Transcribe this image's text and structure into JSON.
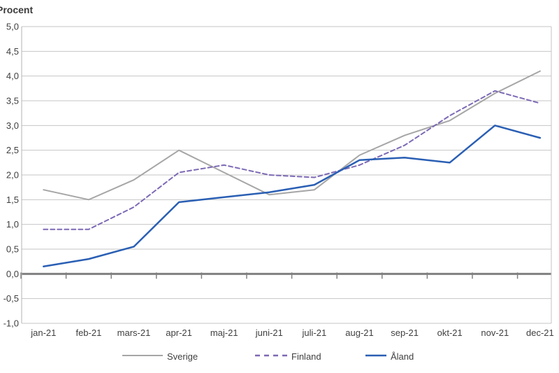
{
  "chart_data": {
    "type": "line",
    "title": "Procent",
    "categories": [
      "jan-21",
      "feb-21",
      "mars-21",
      "apr-21",
      "maj-21",
      "juni-21",
      "juli-21",
      "aug-21",
      "sep-21",
      "okt-21",
      "nov-21",
      "dec-21"
    ],
    "series": [
      {
        "name": "Sverige",
        "color": "#a6a6a6",
        "dash": "",
        "width": 2,
        "values": [
          1.7,
          1.5,
          1.9,
          2.5,
          2.05,
          1.6,
          1.7,
          2.4,
          2.8,
          3.1,
          3.65,
          4.1
        ]
      },
      {
        "name": "Finland",
        "color": "#7d69b5",
        "dash": "6 4",
        "width": 2,
        "values": [
          0.9,
          0.9,
          1.35,
          2.05,
          2.2,
          2.0,
          1.95,
          2.2,
          2.6,
          3.2,
          3.7,
          3.45
        ]
      },
      {
        "name": "Åland",
        "color": "#2a5fb4",
        "dash": "",
        "width": 2.5,
        "values": [
          0.15,
          0.3,
          0.55,
          1.45,
          1.55,
          1.65,
          1.8,
          2.3,
          2.35,
          2.25,
          3.0,
          2.75
        ]
      }
    ],
    "ylim": [
      -1.0,
      5.0
    ],
    "ytick_values": [
      5.0,
      4.5,
      4.0,
      3.5,
      3.0,
      2.5,
      2.0,
      1.5,
      1.0,
      0.5,
      0.0,
      -0.5,
      -1.0
    ],
    "ytick_labels": [
      "5,0",
      "4,5",
      "4,0",
      "3,5",
      "3,0",
      "2,5",
      "2,0",
      "1,5",
      "1,0",
      "0,5",
      "0,0",
      "-0,5",
      "-1,0"
    ],
    "grid": true,
    "legend_position": "bottom",
    "colors": {
      "gridline": "#c6c6c6",
      "zero_line": "#808080",
      "axis_line": "#b3b3b3",
      "text": "#404040"
    }
  },
  "legend": {
    "items": [
      {
        "label": "Sverige"
      },
      {
        "label": "Finland"
      },
      {
        "label": "Åland"
      }
    ]
  }
}
